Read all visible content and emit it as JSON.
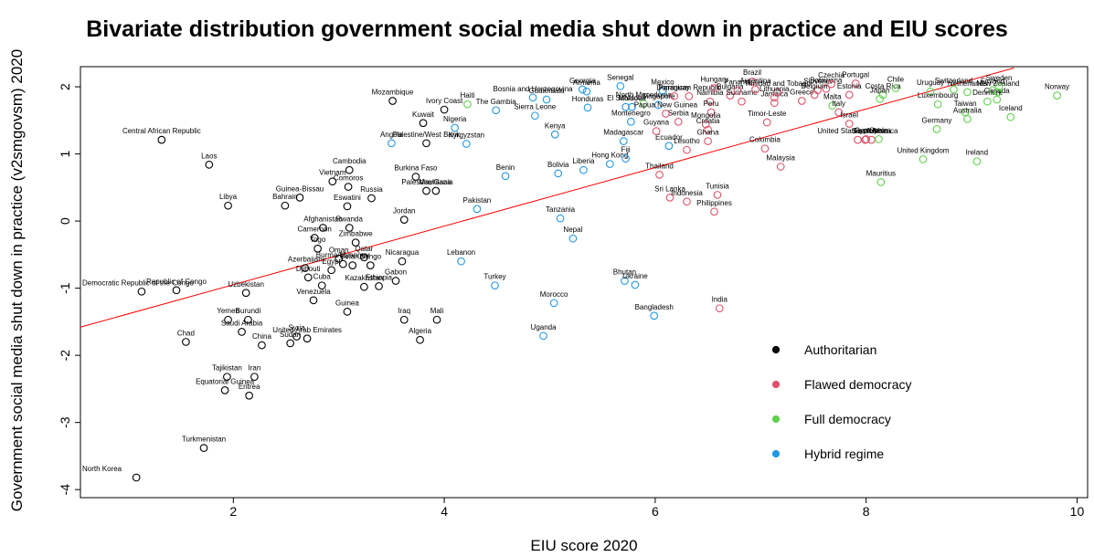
{
  "chart_data": {
    "type": "scatter",
    "title": "Bivariate distribution government social media shut down in practice and EIU scores",
    "xlabel": "EIU score 2020",
    "ylabel": "Government social media shut down in practice (v2smgovsm) 2020",
    "xlim": [
      0.55,
      10.1
    ],
    "ylim": [
      -4.12,
      2.3
    ],
    "xticks": [
      2,
      4,
      6,
      8,
      10
    ],
    "yticks": [
      -4,
      -3,
      -2,
      -1,
      0,
      1,
      2
    ],
    "grid": false,
    "legend_position": "bottom-right",
    "trendline": {
      "color": "#ff0000",
      "x": [
        0.55,
        9.4
      ],
      "y": [
        -1.58,
        2.28
      ]
    },
    "groups": [
      {
        "name": "Authoritarian",
        "color": "#000000"
      },
      {
        "name": "Flawed democracy",
        "color": "#df536b"
      },
      {
        "name": "Full democracy",
        "color": "#61d04f"
      },
      {
        "name": "Hybrid regime",
        "color": "#2297e6"
      }
    ],
    "points": [
      {
        "label": "North Korea",
        "x": 1.08,
        "y": -3.82,
        "g": 0
      },
      {
        "label": "Turkmenistan",
        "x": 1.72,
        "y": -3.38,
        "g": 0
      },
      {
        "label": "Equatorial Guinea",
        "x": 1.92,
        "y": -2.52,
        "g": 0
      },
      {
        "label": "Eritrea",
        "x": 2.15,
        "y": -2.6,
        "g": 0
      },
      {
        "label": "Tajikistan",
        "x": 1.94,
        "y": -2.32,
        "g": 0
      },
      {
        "label": "Iran",
        "x": 2.2,
        "y": -2.32,
        "g": 0
      },
      {
        "label": "Chad",
        "x": 1.55,
        "y": -1.8,
        "g": 0
      },
      {
        "label": "China",
        "x": 2.27,
        "y": -1.85,
        "g": 0
      },
      {
        "label": "Saudi Arabia",
        "x": 2.08,
        "y": -1.65,
        "g": 0
      },
      {
        "label": "Yemen",
        "x": 1.95,
        "y": -1.47,
        "g": 0
      },
      {
        "label": "Burundi",
        "x": 2.14,
        "y": -1.47,
        "g": 0
      },
      {
        "label": "Sudan",
        "x": 2.54,
        "y": -1.82,
        "g": 0
      },
      {
        "label": "Syria",
        "x": 2.6,
        "y": -1.72,
        "g": 0
      },
      {
        "label": "United Arab Emirates",
        "x": 2.7,
        "y": -1.75,
        "g": 0
      },
      {
        "label": "Democratic Republic of the Congo",
        "x": 1.13,
        "y": -1.05,
        "g": 0
      },
      {
        "label": "Republic of Congo",
        "x": 1.46,
        "y": -1.03,
        "g": 0
      },
      {
        "label": "Uzbekistan",
        "x": 2.12,
        "y": -1.07,
        "g": 0
      },
      {
        "label": "Laos",
        "x": 1.77,
        "y": 0.84,
        "g": 0
      },
      {
        "label": "Libya",
        "x": 1.95,
        "y": 0.23,
        "g": 0
      },
      {
        "label": "Central African Republic",
        "x": 1.32,
        "y": 1.21,
        "g": 0
      },
      {
        "label": "Bahrain",
        "x": 2.49,
        "y": 0.23,
        "g": 0
      },
      {
        "label": "Guinea-Bissau",
        "x": 2.63,
        "y": 0.35,
        "g": 0
      },
      {
        "label": "Vietnam",
        "x": 2.94,
        "y": 0.59,
        "g": 0
      },
      {
        "label": "Cambodia",
        "x": 3.1,
        "y": 0.76,
        "g": 0
      },
      {
        "label": "Comoros",
        "x": 3.09,
        "y": 0.51,
        "g": 0
      },
      {
        "label": "Eswatini",
        "x": 3.08,
        "y": 0.22,
        "g": 0
      },
      {
        "label": "Russia",
        "x": 3.31,
        "y": 0.34,
        "g": 0
      },
      {
        "label": "Afghanistan",
        "x": 2.85,
        "y": -0.1,
        "g": 0
      },
      {
        "label": "Rwanda",
        "x": 3.1,
        "y": -0.1,
        "g": 0
      },
      {
        "label": "Cameroon",
        "x": 2.77,
        "y": -0.25,
        "g": 0
      },
      {
        "label": "Togo",
        "x": 2.8,
        "y": -0.41,
        "g": 0
      },
      {
        "label": "Zimbabwe",
        "x": 3.16,
        "y": -0.32,
        "g": 0
      },
      {
        "label": "Oman",
        "x": 3.0,
        "y": -0.56,
        "g": 0
      },
      {
        "label": "Qatar",
        "x": 3.24,
        "y": -0.54,
        "g": 0
      },
      {
        "label": "Burma/Myanmar",
        "x": 3.04,
        "y": -0.64,
        "g": 0
      },
      {
        "label": "Belarus",
        "x": 3.13,
        "y": -0.66,
        "g": 0
      },
      {
        "label": "Congo",
        "x": 3.3,
        "y": -0.66,
        "g": 0
      },
      {
        "label": "Azerbaijan",
        "x": 2.68,
        "y": -0.7,
        "g": 0
      },
      {
        "label": "Egypt",
        "x": 2.93,
        "y": -0.73,
        "g": 0
      },
      {
        "label": "Djibouti",
        "x": 2.71,
        "y": -0.84,
        "g": 0
      },
      {
        "label": "Cuba",
        "x": 2.84,
        "y": -0.96,
        "g": 0
      },
      {
        "label": "Venezuela",
        "x": 2.76,
        "y": -1.18,
        "g": 0
      },
      {
        "label": "Kazakhstan",
        "x": 3.24,
        "y": -0.98,
        "g": 0
      },
      {
        "label": "Ethiopia",
        "x": 3.38,
        "y": -0.97,
        "g": 0
      },
      {
        "label": "Gabon",
        "x": 3.54,
        "y": -0.89,
        "g": 0
      },
      {
        "label": "Guinea",
        "x": 3.08,
        "y": -1.35,
        "g": 0
      },
      {
        "label": "Nicaragua",
        "x": 3.6,
        "y": -0.6,
        "g": 0
      },
      {
        "label": "Jordan",
        "x": 3.62,
        "y": 0.02,
        "g": 0
      },
      {
        "label": "Burkina Faso",
        "x": 3.73,
        "y": 0.66,
        "g": 0
      },
      {
        "label": "Palestine/Gaza",
        "x": 3.83,
        "y": 0.45,
        "g": 0
      },
      {
        "label": "Mauritania",
        "x": 3.92,
        "y": 0.45,
        "g": 0
      },
      {
        "label": "Iraq",
        "x": 3.62,
        "y": -1.47,
        "g": 0
      },
      {
        "label": "Algeria",
        "x": 3.77,
        "y": -1.77,
        "g": 0
      },
      {
        "label": "Mali",
        "x": 3.93,
        "y": -1.47,
        "g": 0
      },
      {
        "label": "Mozambique",
        "x": 3.51,
        "y": 1.79,
        "g": 0
      },
      {
        "label": "Kuwait",
        "x": 3.8,
        "y": 1.46,
        "g": 0
      },
      {
        "label": "Palestine/West Bank",
        "x": 3.83,
        "y": 1.16,
        "g": 0
      },
      {
        "label": "Ivory Coast",
        "x": 4.0,
        "y": 1.66,
        "g": 0
      },
      {
        "label": "Haiti",
        "x": 4.22,
        "y": 1.74,
        "g": 2
      },
      {
        "label": "Nigeria",
        "x": 4.1,
        "y": 1.39,
        "g": 3
      },
      {
        "label": "Kyrgyzstan",
        "x": 4.21,
        "y": 1.15,
        "g": 3
      },
      {
        "label": "Angola",
        "x": 3.5,
        "y": 1.16,
        "g": 3
      },
      {
        "label": "Pakistan",
        "x": 4.31,
        "y": 0.18,
        "g": 3
      },
      {
        "label": "Lebanon",
        "x": 4.16,
        "y": -0.6,
        "g": 3
      },
      {
        "label": "Turkey",
        "x": 4.48,
        "y": -0.96,
        "g": 3
      },
      {
        "label": "Benin",
        "x": 4.58,
        "y": 0.67,
        "g": 3
      },
      {
        "label": "The Gambia",
        "x": 4.49,
        "y": 1.65,
        "g": 3
      },
      {
        "label": "Sierra Leone",
        "x": 4.86,
        "y": 1.57,
        "g": 3
      },
      {
        "label": "Bosnia and Herzegovina",
        "x": 4.84,
        "y": 1.84,
        "g": 3
      },
      {
        "label": "Guatemala",
        "x": 4.97,
        "y": 1.81,
        "g": 3
      },
      {
        "label": "Tanzania",
        "x": 5.1,
        "y": 0.04,
        "g": 3
      },
      {
        "label": "Nepal",
        "x": 5.22,
        "y": -0.26,
        "g": 3
      },
      {
        "label": "Morocco",
        "x": 5.04,
        "y": -1.22,
        "g": 3
      },
      {
        "label": "Uganda",
        "x": 4.94,
        "y": -1.71,
        "g": 3
      },
      {
        "label": "Kenya",
        "x": 5.05,
        "y": 1.29,
        "g": 3
      },
      {
        "label": "Bolivia",
        "x": 5.08,
        "y": 0.71,
        "g": 3
      },
      {
        "label": "Liberia",
        "x": 5.32,
        "y": 0.76,
        "g": 3
      },
      {
        "label": "Honduras",
        "x": 5.36,
        "y": 1.69,
        "g": 3
      },
      {
        "label": "Georgia",
        "x": 5.31,
        "y": 1.96,
        "g": 3
      },
      {
        "label": "Armenia",
        "x": 5.35,
        "y": 1.93,
        "g": 3
      },
      {
        "label": "Senegal",
        "x": 5.67,
        "y": 2.01,
        "g": 3
      },
      {
        "label": "Hong Kong",
        "x": 5.57,
        "y": 0.85,
        "g": 3
      },
      {
        "label": "Fiji",
        "x": 5.72,
        "y": 0.93,
        "g": 3
      },
      {
        "label": "Madagascar",
        "x": 5.7,
        "y": 1.19,
        "g": 3
      },
      {
        "label": "Bhutan",
        "x": 5.71,
        "y": -0.89,
        "g": 3
      },
      {
        "label": "Ukraine",
        "x": 5.81,
        "y": -0.95,
        "g": 3
      },
      {
        "label": "Bangladesh",
        "x": 5.99,
        "y": -1.41,
        "g": 3
      },
      {
        "label": "Montenegro",
        "x": 5.77,
        "y": 1.48,
        "g": 3
      },
      {
        "label": "North Macedonia",
        "x": 5.89,
        "y": 1.75,
        "g": 2
      },
      {
        "label": "Moldova",
        "x": 5.78,
        "y": 1.7,
        "g": 3
      },
      {
        "label": "El Salvador",
        "x": 5.72,
        "y": 1.7,
        "g": 3
      },
      {
        "label": "Mexico",
        "x": 6.07,
        "y": 1.94,
        "g": 3
      },
      {
        "label": "Singapore",
        "x": 6.03,
        "y": 1.73,
        "g": 3
      },
      {
        "label": "Paraguay",
        "x": 6.18,
        "y": 1.86,
        "g": 1
      },
      {
        "label": "Ecuador",
        "x": 6.13,
        "y": 1.12,
        "g": 3
      },
      {
        "label": "Thailand",
        "x": 6.04,
        "y": 0.69,
        "g": 1
      },
      {
        "label": "Sri Lanka",
        "x": 6.14,
        "y": 0.35,
        "g": 1
      },
      {
        "label": "Indonesia",
        "x": 6.3,
        "y": 0.29,
        "g": 1
      },
      {
        "label": "Serbia",
        "x": 6.22,
        "y": 1.48,
        "g": 1
      },
      {
        "label": "Papua New Guinea",
        "x": 6.1,
        "y": 1.6,
        "g": 1
      },
      {
        "label": "Guyana",
        "x": 6.01,
        "y": 1.34,
        "g": 1
      },
      {
        "label": "Lesotho",
        "x": 6.3,
        "y": 1.06,
        "g": 1
      },
      {
        "label": "Dominican Republic",
        "x": 6.32,
        "y": 1.86,
        "g": 1
      },
      {
        "label": "Namibia",
        "x": 6.52,
        "y": 1.78,
        "g": 1
      },
      {
        "label": "Peru",
        "x": 6.53,
        "y": 1.62,
        "g": 1
      },
      {
        "label": "Mongolia",
        "x": 6.48,
        "y": 1.44,
        "g": 1
      },
      {
        "label": "Croatia",
        "x": 6.5,
        "y": 1.36,
        "g": 1
      },
      {
        "label": "Ghana",
        "x": 6.5,
        "y": 1.19,
        "g": 1
      },
      {
        "label": "Tunisia",
        "x": 6.59,
        "y": 0.39,
        "g": 1
      },
      {
        "label": "Philippines",
        "x": 6.56,
        "y": 0.14,
        "g": 1
      },
      {
        "label": "India",
        "x": 6.61,
        "y": -1.3,
        "g": 1
      },
      {
        "label": "Hungary",
        "x": 6.56,
        "y": 1.98,
        "g": 1
      },
      {
        "label": "Bulgaria",
        "x": 6.71,
        "y": 1.87,
        "g": 1
      },
      {
        "label": "Suriname",
        "x": 6.82,
        "y": 1.78,
        "g": 1
      },
      {
        "label": "Brazil",
        "x": 6.92,
        "y": 2.08,
        "g": 1
      },
      {
        "label": "Panama",
        "x": 6.78,
        "y": 1.94,
        "g": 1
      },
      {
        "label": "Argentina",
        "x": 6.95,
        "y": 1.96,
        "g": 1
      },
      {
        "label": "Jamaica",
        "x": 7.13,
        "y": 1.76,
        "g": 1
      },
      {
        "label": "Trinidad and Tobago",
        "x": 7.16,
        "y": 1.92,
        "g": 1
      },
      {
        "label": "Lithuania",
        "x": 7.13,
        "y": 1.84,
        "g": 1
      },
      {
        "label": "Colombia",
        "x": 7.04,
        "y": 1.08,
        "g": 1
      },
      {
        "label": "Malaysia",
        "x": 7.19,
        "y": 0.81,
        "g": 1
      },
      {
        "label": "Timor-Leste",
        "x": 7.06,
        "y": 1.47,
        "g": 1
      },
      {
        "label": "Greece",
        "x": 7.39,
        "y": 1.79,
        "g": 1
      },
      {
        "label": "Botswana",
        "x": 7.62,
        "y": 1.97,
        "g": 1
      },
      {
        "label": "Slovenia",
        "x": 7.54,
        "y": 1.95,
        "g": 1
      },
      {
        "label": "Czechia",
        "x": 7.67,
        "y": 2.04,
        "g": 1
      },
      {
        "label": "Belgium",
        "x": 7.51,
        "y": 1.88,
        "g": 1
      },
      {
        "label": "Malta",
        "x": 7.68,
        "y": 1.72,
        "g": 2
      },
      {
        "label": "Italy",
        "x": 7.74,
        "y": 1.62,
        "g": 1
      },
      {
        "label": "Israel",
        "x": 7.84,
        "y": 1.45,
        "g": 1
      },
      {
        "label": "Portugal",
        "x": 7.9,
        "y": 2.05,
        "g": 1
      },
      {
        "label": "Estonia",
        "x": 7.84,
        "y": 1.88,
        "g": 1
      },
      {
        "label": "United States of America",
        "x": 7.92,
        "y": 1.21,
        "g": 1
      },
      {
        "label": "France",
        "x": 7.99,
        "y": 1.21,
        "g": 1
      },
      {
        "label": "South Africa",
        "x": 8.05,
        "y": 1.21,
        "g": 1
      },
      {
        "label": "Cyprus",
        "x": 8.0,
        "y": 1.22,
        "g": 1
      },
      {
        "label": "Spain",
        "x": 8.12,
        "y": 1.22,
        "g": 2
      },
      {
        "label": "Costa Rica",
        "x": 8.16,
        "y": 1.88,
        "g": 2
      },
      {
        "label": "Chile",
        "x": 8.28,
        "y": 1.98,
        "g": 2
      },
      {
        "label": "Japan",
        "x": 8.13,
        "y": 1.82,
        "g": 2
      },
      {
        "label": "Mauritius",
        "x": 8.14,
        "y": 0.58,
        "g": 2
      },
      {
        "label": "United Kingdom",
        "x": 8.54,
        "y": 0.92,
        "g": 2
      },
      {
        "label": "Germany",
        "x": 8.67,
        "y": 1.37,
        "g": 2
      },
      {
        "label": "Uruguay",
        "x": 8.61,
        "y": 1.93,
        "g": 2
      },
      {
        "label": "Luxembourg",
        "x": 8.68,
        "y": 1.74,
        "g": 2
      },
      {
        "label": "Taiwan",
        "x": 8.94,
        "y": 1.62,
        "g": 2
      },
      {
        "label": "Australia",
        "x": 8.96,
        "y": 1.52,
        "g": 2
      },
      {
        "label": "Switzerland",
        "x": 8.83,
        "y": 1.96,
        "g": 2
      },
      {
        "label": "Netherlands",
        "x": 8.96,
        "y": 1.92,
        "g": 2
      },
      {
        "label": "Ireland",
        "x": 9.05,
        "y": 0.89,
        "g": 2
      },
      {
        "label": "Canada",
        "x": 9.24,
        "y": 1.81,
        "g": 2
      },
      {
        "label": "Denmark",
        "x": 9.15,
        "y": 1.78,
        "g": 2
      },
      {
        "label": "Finland",
        "x": 9.2,
        "y": 1.95,
        "g": 2
      },
      {
        "label": "New Zealand",
        "x": 9.25,
        "y": 1.92,
        "g": 2
      },
      {
        "label": "Sweden",
        "x": 9.26,
        "y": 2.0,
        "g": 2
      },
      {
        "label": "Iceland",
        "x": 9.37,
        "y": 1.55,
        "g": 2
      },
      {
        "label": "Norway",
        "x": 9.81,
        "y": 1.87,
        "g": 2
      }
    ]
  }
}
